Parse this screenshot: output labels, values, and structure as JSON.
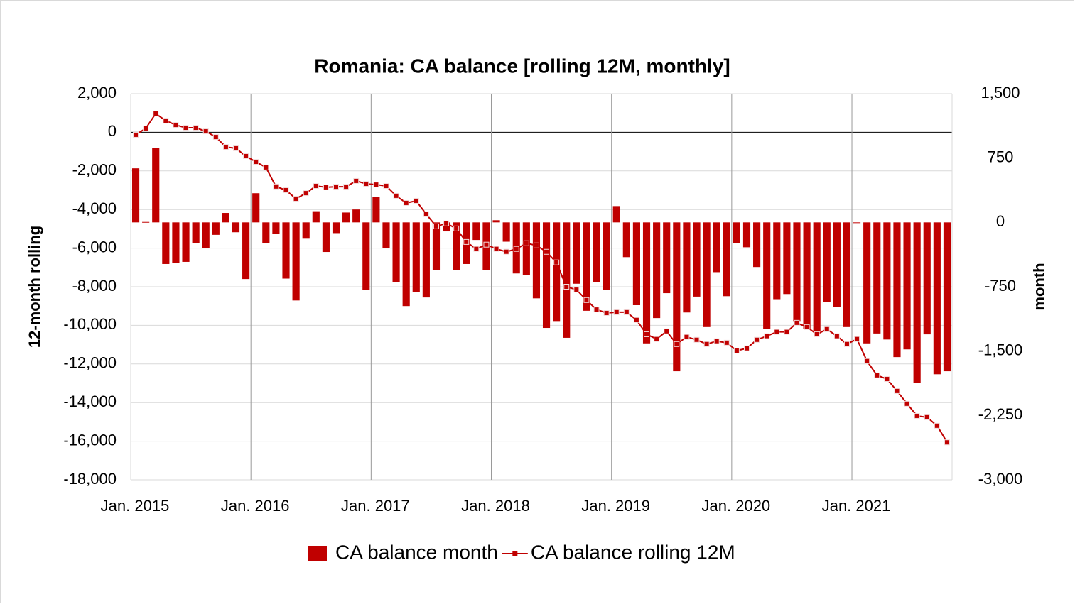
{
  "chart_data": {
    "type": "bar_line",
    "title": "Romania: CA balance [rolling 12M, monthly]",
    "y_label": "12-month rolling",
    "y2_label": "month",
    "categories": [
      "Jan. 2015",
      null,
      null,
      null,
      null,
      null,
      null,
      null,
      null,
      null,
      null,
      null,
      "Jan. 2016",
      null,
      null,
      null,
      null,
      null,
      null,
      null,
      null,
      null,
      null,
      null,
      "Jan. 2017",
      null,
      null,
      null,
      null,
      null,
      null,
      null,
      null,
      null,
      null,
      null,
      "Jan. 2018",
      null,
      null,
      null,
      null,
      null,
      null,
      null,
      null,
      null,
      null,
      null,
      "Jan. 2019",
      null,
      null,
      null,
      null,
      null,
      null,
      null,
      null,
      null,
      null,
      null,
      "Jan. 2020",
      null,
      null,
      null,
      null,
      null,
      null,
      null,
      null,
      null,
      null,
      null,
      "Jan. 2021",
      null,
      null,
      null,
      null,
      null,
      null,
      null,
      null,
      null
    ],
    "series": [
      {
        "name": "CA balance month",
        "type": "bar",
        "axis": "y2",
        "color": "#c00000",
        "values": [
          630,
          5,
          870,
          -485,
          -470,
          -460,
          -240,
          -295,
          -145,
          110,
          -115,
          -660,
          340,
          -240,
          -130,
          -655,
          -910,
          -190,
          130,
          -345,
          -125,
          115,
          150,
          -790,
          300,
          -295,
          -695,
          -975,
          -810,
          -875,
          -555,
          -105,
          -555,
          -485,
          -205,
          -555,
          25,
          -225,
          -595,
          -610,
          -885,
          -1230,
          -1150,
          -1345,
          -715,
          -1030,
          -695,
          -790,
          190,
          -405,
          -965,
          -1410,
          -1115,
          -825,
          -1735,
          -1050,
          -865,
          -1220,
          -580,
          -860,
          -240,
          -290,
          -520,
          -1240,
          -895,
          -835,
          -1150,
          -1240,
          -1270,
          -930,
          -985,
          -1220,
          -5,
          -1410,
          -1295,
          -1365,
          -1570,
          -1480,
          -1875,
          -1305,
          -1770,
          -1735
        ]
      },
      {
        "name": "CA balance rolling 12M",
        "type": "line",
        "axis": "y",
        "color": "#c00000",
        "values": [
          -130,
          200,
          970,
          600,
          380,
          235,
          235,
          50,
          -245,
          -760,
          -830,
          -1235,
          -1530,
          -1820,
          -2810,
          -3000,
          -3440,
          -3150,
          -2780,
          -2850,
          -2820,
          -2820,
          -2520,
          -2670,
          -2710,
          -2780,
          -3290,
          -3660,
          -3550,
          -4240,
          -4870,
          -4720,
          -4980,
          -5680,
          -6040,
          -5820,
          -6040,
          -6190,
          -6040,
          -5750,
          -5860,
          -6190,
          -6740,
          -8000,
          -8150,
          -8690,
          -9180,
          -9360,
          -9320,
          -9320,
          -9720,
          -10460,
          -10710,
          -10310,
          -10970,
          -10600,
          -10750,
          -10970,
          -10820,
          -10900,
          -11310,
          -11190,
          -10750,
          -10560,
          -10340,
          -10340,
          -9870,
          -10090,
          -10460,
          -10200,
          -10560,
          -10970,
          -10710,
          -11850,
          -12590,
          -12780,
          -13400,
          -14060,
          -14690,
          -14760,
          -15200,
          -16060
        ]
      }
    ],
    "ylim": [
      -18000,
      2000
    ],
    "yticks": [
      {
        "value": 2000,
        "label": "2,000"
      },
      0,
      {
        "value": -2000,
        "label": "-2,000"
      },
      {
        "value": -4000,
        "label": "-4,000"
      },
      {
        "value": -6000,
        "label": "-6,000"
      },
      {
        "value": -8000,
        "label": "-8,000"
      },
      {
        "value": -10000,
        "label": "-10,000"
      },
      {
        "value": -12000,
        "label": "-12,000"
      },
      {
        "value": -14000,
        "label": "-14,000"
      },
      {
        "value": -16000,
        "label": "-16,000"
      },
      {
        "value": -18000,
        "label": "-18,000"
      }
    ],
    "y2lim": [
      -3000,
      1500
    ],
    "y2ticks": [
      {
        "value": 1500,
        "label": "1,500"
      },
      750,
      0,
      -750,
      {
        "value": -1500,
        "label": "-1,500"
      },
      {
        "value": -2250,
        "label": "-2,250"
      },
      {
        "value": -3000,
        "label": "-3,000"
      }
    ],
    "grid": true,
    "legend": "bottom"
  }
}
